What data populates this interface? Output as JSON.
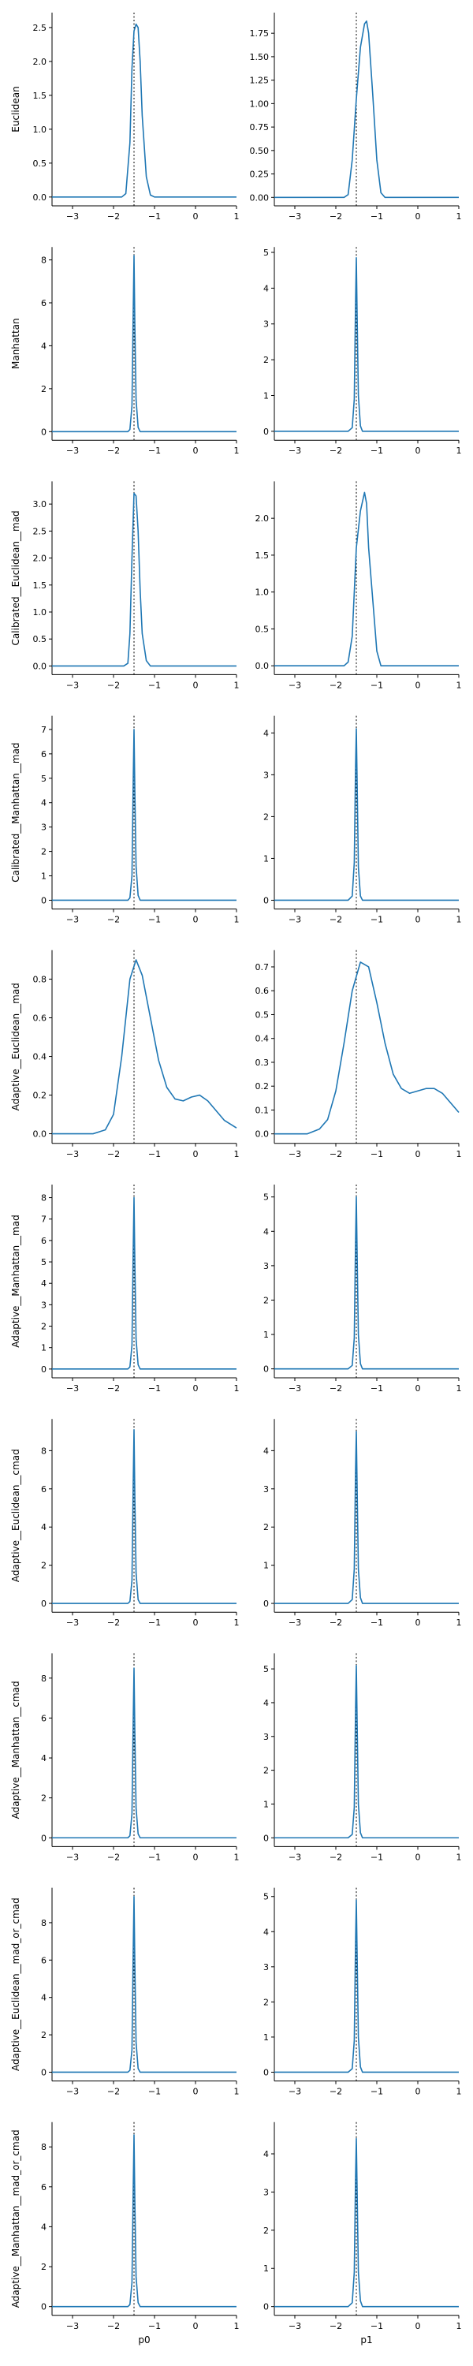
{
  "style": {
    "line_color": "#1f77b4",
    "ref_line_color": "#000000",
    "ref_line_style": "dotted"
  },
  "chart_data": {
    "type": "line",
    "layout": "grid-10x2",
    "columns": [
      "p0",
      "p1"
    ],
    "rows": [
      "Euclidean",
      "Manhattan",
      "Calibrated__Euclidean__mad",
      "Calibrated__Manhattan__mad",
      "Adaptive__Euclidean__mad",
      "Adaptive__Manhattan__mad",
      "Adaptive__Euclidean__cmad",
      "Adaptive__Manhattan__cmad",
      "Adaptive__Euclidean__mad_or_cmad",
      "Adaptive__Manhattan__mad_or_cmad"
    ],
    "xlim": [
      -3.5,
      1
    ],
    "xticks": [
      -3,
      -2,
      -1,
      0,
      1
    ],
    "xtick_labels": [
      "−3",
      "−2",
      "−1",
      "0",
      "1"
    ],
    "reference_x": -1.5,
    "grid": false,
    "panels": [
      {
        "row": 0,
        "col": 0,
        "ylim": [
          -0.13,
          2.72
        ],
        "yticks": [
          0,
          0.5,
          1,
          1.5,
          2,
          2.5
        ],
        "ytick_labels": [
          "0.0",
          "0.5",
          "1.0",
          "1.5",
          "2.0",
          "2.5"
        ],
        "x": [
          -3.5,
          -1.8,
          -1.7,
          -1.6,
          -1.55,
          -1.5,
          -1.45,
          -1.4,
          -1.35,
          -1.3,
          -1.2,
          -1.1,
          -1.0,
          1
        ],
        "y": [
          0,
          0,
          0.05,
          0.8,
          1.9,
          2.45,
          2.55,
          2.5,
          2.0,
          1.2,
          0.3,
          0.03,
          0,
          0
        ]
      },
      {
        "row": 0,
        "col": 1,
        "ylim": [
          -0.09,
          1.97
        ],
        "yticks": [
          0,
          0.25,
          0.5,
          0.75,
          1,
          1.25,
          1.5,
          1.75
        ],
        "ytick_labels": [
          "0.00",
          "0.25",
          "0.50",
          "0.75",
          "1.00",
          "1.25",
          "1.50",
          "1.75"
        ],
        "x": [
          -3.5,
          -1.8,
          -1.7,
          -1.6,
          -1.5,
          -1.4,
          -1.3,
          -1.25,
          -1.2,
          -1.1,
          -1.0,
          -0.9,
          -0.8,
          1
        ],
        "y": [
          0,
          0,
          0.03,
          0.4,
          1.05,
          1.6,
          1.85,
          1.88,
          1.75,
          1.1,
          0.4,
          0.05,
          0,
          0
        ]
      },
      {
        "row": 1,
        "col": 0,
        "ylim": [
          -0.4,
          8.6
        ],
        "yticks": [
          0,
          2,
          4,
          6,
          8
        ],
        "ytick_labels": [
          "0",
          "2",
          "4",
          "6",
          "8"
        ],
        "x": [
          -3.5,
          -1.65,
          -1.6,
          -1.55,
          -1.52,
          -1.5,
          -1.48,
          -1.45,
          -1.4,
          -1.35,
          1
        ],
        "y": [
          0,
          0,
          0.1,
          1.2,
          5.5,
          8.2,
          5.0,
          1.5,
          0.2,
          0,
          0
        ]
      },
      {
        "row": 1,
        "col": 1,
        "ylim": [
          -0.25,
          5.15
        ],
        "yticks": [
          0,
          1,
          2,
          3,
          4,
          5
        ],
        "ytick_labels": [
          "0",
          "1",
          "2",
          "3",
          "4",
          "5"
        ],
        "x": [
          -3.5,
          -1.7,
          -1.6,
          -1.55,
          -1.52,
          -1.5,
          -1.48,
          -1.45,
          -1.4,
          -1.35,
          1
        ],
        "y": [
          0,
          0,
          0.1,
          0.9,
          3.5,
          4.85,
          3.2,
          1.0,
          0.15,
          0,
          0
        ]
      },
      {
        "row": 2,
        "col": 0,
        "ylim": [
          -0.16,
          3.42
        ],
        "yticks": [
          0,
          0.5,
          1,
          1.5,
          2,
          2.5,
          3
        ],
        "ytick_labels": [
          "0.0",
          "0.5",
          "1.0",
          "1.5",
          "2.0",
          "2.5",
          "3.0"
        ],
        "x": [
          -3.5,
          -1.75,
          -1.65,
          -1.6,
          -1.55,
          -1.5,
          -1.45,
          -1.4,
          -1.35,
          -1.3,
          -1.2,
          -1.1,
          1
        ],
        "y": [
          0,
          0,
          0.05,
          0.6,
          2.0,
          3.2,
          3.15,
          2.5,
          1.4,
          0.6,
          0.1,
          0,
          0
        ]
      },
      {
        "row": 2,
        "col": 1,
        "ylim": [
          -0.12,
          2.5
        ],
        "yticks": [
          0,
          0.5,
          1,
          1.5,
          2
        ],
        "ytick_labels": [
          "0.0",
          "0.5",
          "1.0",
          "1.5",
          "2.0"
        ],
        "x": [
          -3.5,
          -1.8,
          -1.7,
          -1.6,
          -1.5,
          -1.4,
          -1.3,
          -1.25,
          -1.2,
          -1.1,
          -1.0,
          -0.9,
          1
        ],
        "y": [
          0,
          0,
          0.05,
          0.4,
          1.6,
          2.1,
          2.35,
          2.2,
          1.6,
          0.9,
          0.2,
          0,
          0
        ]
      },
      {
        "row": 3,
        "col": 0,
        "ylim": [
          -0.36,
          7.56
        ],
        "yticks": [
          0,
          1,
          2,
          3,
          4,
          5,
          6,
          7
        ],
        "ytick_labels": [
          "0",
          "1",
          "2",
          "3",
          "4",
          "5",
          "6",
          "7"
        ],
        "x": [
          -3.5,
          -1.65,
          -1.6,
          -1.55,
          -1.52,
          -1.5,
          -1.48,
          -1.45,
          -1.4,
          -1.35,
          1
        ],
        "y": [
          0,
          0,
          0.1,
          1.0,
          4.8,
          7.0,
          4.5,
          1.4,
          0.2,
          0,
          0
        ]
      },
      {
        "row": 3,
        "col": 1,
        "ylim": [
          -0.21,
          4.41
        ],
        "yticks": [
          0,
          1,
          2,
          3,
          4
        ],
        "ytick_labels": [
          "0",
          "1",
          "2",
          "3",
          "4"
        ],
        "x": [
          -3.5,
          -1.7,
          -1.6,
          -1.55,
          -1.52,
          -1.5,
          -1.48,
          -1.45,
          -1.4,
          -1.35,
          1
        ],
        "y": [
          0,
          0,
          0.1,
          0.9,
          3.1,
          4.1,
          2.8,
          0.8,
          0.1,
          0,
          0
        ]
      },
      {
        "row": 4,
        "col": 0,
        "ylim": [
          -0.05,
          0.95
        ],
        "yticks": [
          0,
          0.2,
          0.4,
          0.6,
          0.8
        ],
        "ytick_labels": [
          "0.0",
          "0.2",
          "0.4",
          "0.6",
          "0.8"
        ],
        "x": [
          -3.5,
          -2.5,
          -2.2,
          -2.0,
          -1.8,
          -1.6,
          -1.45,
          -1.3,
          -1.1,
          -0.9,
          -0.7,
          -0.5,
          -0.3,
          -0.1,
          0.1,
          0.3,
          0.5,
          0.7,
          0.85,
          1
        ],
        "y": [
          0,
          0,
          0.02,
          0.1,
          0.4,
          0.8,
          0.9,
          0.82,
          0.6,
          0.38,
          0.24,
          0.18,
          0.17,
          0.19,
          0.2,
          0.17,
          0.12,
          0.07,
          0.05,
          0.03
        ]
      },
      {
        "row": 4,
        "col": 1,
        "ylim": [
          -0.04,
          0.77
        ],
        "yticks": [
          0,
          0.1,
          0.2,
          0.3,
          0.4,
          0.5,
          0.6,
          0.7
        ],
        "ytick_labels": [
          "0.0",
          "0.1",
          "0.2",
          "0.3",
          "0.4",
          "0.5",
          "0.6",
          "0.7"
        ],
        "x": [
          -3.5,
          -2.7,
          -2.4,
          -2.2,
          -2.0,
          -1.8,
          -1.6,
          -1.4,
          -1.2,
          -1.0,
          -0.8,
          -0.6,
          -0.4,
          -0.2,
          0,
          0.2,
          0.4,
          0.6,
          0.8,
          1
        ],
        "y": [
          0,
          0,
          0.02,
          0.06,
          0.18,
          0.38,
          0.6,
          0.72,
          0.7,
          0.55,
          0.38,
          0.25,
          0.19,
          0.17,
          0.18,
          0.19,
          0.19,
          0.17,
          0.13,
          0.09
        ]
      },
      {
        "row": 5,
        "col": 0,
        "ylim": [
          -0.41,
          8.61
        ],
        "yticks": [
          0,
          1,
          2,
          3,
          4,
          5,
          6,
          7,
          8
        ],
        "ytick_labels": [
          "0",
          "1",
          "2",
          "3",
          "4",
          "5",
          "6",
          "7",
          "8"
        ],
        "x": [
          -3.5,
          -1.65,
          -1.6,
          -1.55,
          -1.52,
          -1.5,
          -1.48,
          -1.45,
          -1.4,
          -1.35,
          1
        ],
        "y": [
          0,
          0,
          0.1,
          1.1,
          5.5,
          8.0,
          5.0,
          1.4,
          0.2,
          0,
          0
        ]
      },
      {
        "row": 5,
        "col": 1,
        "ylim": [
          -0.26,
          5.36
        ],
        "yticks": [
          0,
          1,
          2,
          3,
          4,
          5
        ],
        "ytick_labels": [
          "0",
          "1",
          "2",
          "3",
          "4",
          "5"
        ],
        "x": [
          -3.5,
          -1.7,
          -1.6,
          -1.55,
          -1.52,
          -1.5,
          -1.48,
          -1.45,
          -1.4,
          -1.35,
          1
        ],
        "y": [
          0,
          0,
          0.1,
          0.9,
          3.6,
          5.0,
          3.3,
          1.0,
          0.15,
          0,
          0
        ]
      },
      {
        "row": 6,
        "col": 0,
        "ylim": [
          -0.46,
          9.66
        ],
        "yticks": [
          0,
          2,
          4,
          6,
          8
        ],
        "ytick_labels": [
          "0",
          "2",
          "4",
          "6",
          "8"
        ],
        "x": [
          -3.5,
          -1.65,
          -1.6,
          -1.55,
          -1.52,
          -1.5,
          -1.48,
          -1.45,
          -1.4,
          -1.35,
          1
        ],
        "y": [
          0,
          0,
          0.1,
          1.2,
          6.2,
          9.1,
          5.6,
          1.6,
          0.2,
          0,
          0
        ]
      },
      {
        "row": 6,
        "col": 1,
        "ylim": [
          -0.23,
          4.83
        ],
        "yticks": [
          0,
          1,
          2,
          3,
          4
        ],
        "ytick_labels": [
          "0",
          "1",
          "2",
          "3",
          "4"
        ],
        "x": [
          -3.5,
          -1.7,
          -1.6,
          -1.55,
          -1.52,
          -1.5,
          -1.48,
          -1.45,
          -1.4,
          -1.35,
          1
        ],
        "y": [
          0,
          0,
          0.1,
          0.9,
          3.4,
          4.5,
          3.0,
          0.9,
          0.15,
          0,
          0
        ]
      },
      {
        "row": 7,
        "col": 0,
        "ylim": [
          -0.44,
          9.24
        ],
        "yticks": [
          0,
          2,
          4,
          6,
          8
        ],
        "ytick_labels": [
          "0",
          "2",
          "4",
          "6",
          "8"
        ],
        "x": [
          -3.5,
          -1.65,
          -1.6,
          -1.55,
          -1.52,
          -1.5,
          -1.48,
          -1.45,
          -1.4,
          -1.35,
          1
        ],
        "y": [
          0,
          0,
          0.1,
          1.2,
          5.8,
          8.5,
          5.3,
          1.5,
          0.2,
          0,
          0
        ]
      },
      {
        "row": 7,
        "col": 1,
        "ylim": [
          -0.26,
          5.46
        ],
        "yticks": [
          0,
          1,
          2,
          3,
          4,
          5
        ],
        "ytick_labels": [
          "0",
          "1",
          "2",
          "3",
          "4",
          "5"
        ],
        "x": [
          -3.5,
          -1.7,
          -1.6,
          -1.55,
          -1.52,
          -1.5,
          -1.48,
          -1.45,
          -1.4,
          -1.35,
          1
        ],
        "y": [
          0,
          0,
          0.1,
          0.9,
          3.7,
          5.1,
          3.4,
          1.0,
          0.15,
          0,
          0
        ]
      },
      {
        "row": 8,
        "col": 0,
        "ylim": [
          -0.47,
          9.87
        ],
        "yticks": [
          0,
          2,
          4,
          6,
          8
        ],
        "ytick_labels": [
          "0",
          "2",
          "4",
          "6",
          "8"
        ],
        "x": [
          -3.5,
          -1.65,
          -1.6,
          -1.55,
          -1.52,
          -1.5,
          -1.48,
          -1.45,
          -1.4,
          -1.35,
          1
        ],
        "y": [
          0,
          0,
          0.1,
          1.2,
          6.4,
          9.4,
          5.8,
          1.6,
          0.2,
          0,
          0
        ]
      },
      {
        "row": 8,
        "col": 1,
        "ylim": [
          -0.25,
          5.25
        ],
        "yticks": [
          0,
          1,
          2,
          3,
          4,
          5
        ],
        "ytick_labels": [
          "0",
          "1",
          "2",
          "3",
          "4",
          "5"
        ],
        "x": [
          -3.5,
          -1.7,
          -1.6,
          -1.55,
          -1.52,
          -1.5,
          -1.48,
          -1.45,
          -1.4,
          -1.35,
          1
        ],
        "y": [
          0,
          0,
          0.1,
          0.9,
          3.6,
          4.9,
          3.3,
          1.0,
          0.15,
          0,
          0
        ]
      },
      {
        "row": 9,
        "col": 0,
        "ylim": [
          -0.44,
          9.24
        ],
        "yticks": [
          0,
          2,
          4,
          6,
          8
        ],
        "ytick_labels": [
          "0",
          "2",
          "4",
          "6",
          "8"
        ],
        "x": [
          -3.5,
          -1.65,
          -1.6,
          -1.55,
          -1.52,
          -1.5,
          -1.48,
          -1.45,
          -1.4,
          -1.35,
          1
        ],
        "y": [
          0,
          0,
          0.1,
          1.2,
          5.8,
          8.6,
          5.3,
          1.5,
          0.2,
          0,
          0
        ]
      },
      {
        "row": 9,
        "col": 1,
        "ylim": [
          -0.23,
          4.83
        ],
        "yticks": [
          0,
          1,
          2,
          3,
          4
        ],
        "ytick_labels": [
          "0",
          "1",
          "2",
          "3",
          "4"
        ],
        "x": [
          -3.5,
          -1.7,
          -1.6,
          -1.55,
          -1.52,
          -1.5,
          -1.48,
          -1.45,
          -1.4,
          -1.35,
          1
        ],
        "y": [
          0,
          0,
          0.1,
          0.9,
          3.3,
          4.4,
          3.0,
          0.9,
          0.15,
          0,
          0
        ]
      }
    ]
  }
}
